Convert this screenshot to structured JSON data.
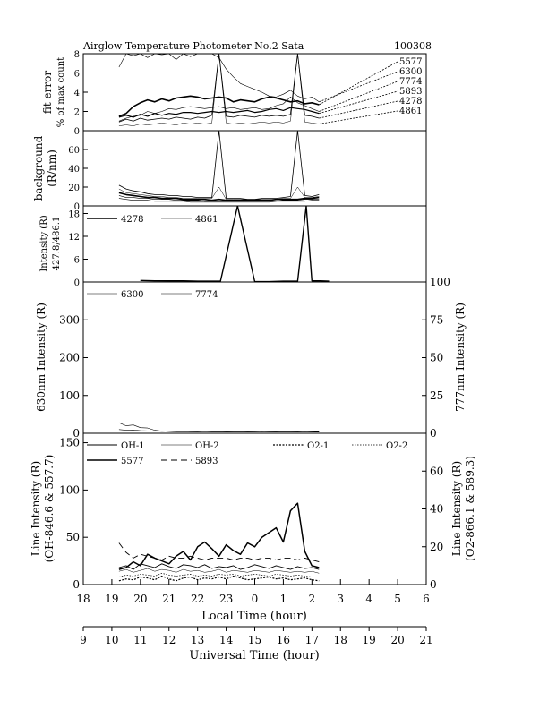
{
  "header": {
    "title": "Airglow Temperature Photometer No.2  Sata",
    "date": "100308"
  },
  "chart_data": [
    {
      "type": "line",
      "panel": "fit-error",
      "ylabel": [
        "fit error",
        "% of max count"
      ],
      "ylim": [
        0,
        8
      ],
      "yticks": [
        0,
        2,
        4,
        6,
        8
      ],
      "x": [
        19.25,
        19.5,
        19.75,
        20.0,
        20.25,
        20.5,
        20.75,
        21.0,
        21.25,
        21.5,
        21.75,
        22.0,
        22.25,
        22.5,
        22.75,
        23.0,
        23.25,
        23.5,
        23.75,
        24.0,
        24.25,
        24.5,
        24.75,
        25.0,
        25.25,
        25.5,
        25.75,
        26.0,
        26.25
      ],
      "series": [
        {
          "name": "5577",
          "values": [
            1.5,
            1.8,
            2.5,
            2.9,
            3.2,
            3.0,
            3.3,
            3.1,
            3.4,
            3.5,
            3.6,
            3.5,
            3.3,
            3.4,
            3.5,
            3.4,
            3.0,
            3.2,
            3.1,
            3.0,
            3.3,
            3.5,
            3.4,
            3.2,
            3.0,
            3.1,
            2.8,
            2.9,
            2.7
          ]
        },
        {
          "name": "6300",
          "values": [
            6.6,
            8.0,
            7.8,
            8.0,
            7.6,
            8.0,
            7.9,
            8.0,
            7.4,
            8.0,
            7.7,
            8.0,
            8.0,
            8.0,
            7.6,
            6.4,
            5.6,
            4.9,
            4.6,
            4.3,
            4.0,
            3.6,
            3.5,
            3.8,
            4.2,
            3.6,
            3.3,
            3.5,
            3.0
          ]
        },
        {
          "name": "7774",
          "values": [
            1.0,
            1.3,
            1.5,
            1.6,
            2.0,
            1.8,
            2.0,
            2.3,
            2.2,
            2.4,
            2.5,
            2.4,
            2.3,
            2.4,
            2.5,
            2.3,
            2.4,
            2.2,
            2.3,
            2.4,
            2.2,
            2.3,
            2.6,
            2.8,
            3.5,
            2.9,
            2.6,
            2.3,
            2.0
          ]
        },
        {
          "name": "5893",
          "values": [
            1.4,
            1.6,
            1.4,
            1.7,
            1.5,
            1.8,
            1.6,
            1.8,
            1.7,
            1.9,
            1.9,
            1.8,
            1.9,
            2.0,
            1.9,
            2.0,
            1.9,
            2.0,
            2.1,
            1.9,
            2.0,
            2.2,
            2.3,
            2.1,
            2.4,
            2.3,
            2.2,
            2.0,
            1.8
          ]
        },
        {
          "name": "4278",
          "values": [
            0.9,
            1.2,
            1.0,
            1.3,
            1.1,
            1.2,
            1.3,
            1.2,
            1.4,
            1.3,
            1.2,
            1.4,
            1.3,
            1.6,
            8.0,
            1.5,
            1.4,
            1.6,
            1.5,
            1.4,
            1.6,
            1.5,
            1.6,
            1.5,
            1.7,
            8.0,
            1.6,
            1.5,
            1.3
          ]
        },
        {
          "name": "4861",
          "values": [
            0.5,
            0.6,
            0.5,
            0.7,
            0.6,
            0.7,
            0.8,
            0.7,
            0.6,
            0.8,
            0.7,
            0.8,
            0.7,
            0.8,
            8.0,
            0.8,
            0.7,
            0.8,
            0.7,
            0.8,
            0.9,
            0.8,
            0.9,
            0.8,
            1.0,
            8.0,
            0.9,
            0.8,
            0.7
          ]
        }
      ]
    },
    {
      "type": "line",
      "panel": "background",
      "ylabel": [
        "background",
        "(R/nm)"
      ],
      "ylim": [
        0,
        80
      ],
      "yticks": [
        0,
        20,
        40,
        60
      ],
      "x": [
        19.25,
        19.5,
        19.75,
        20.0,
        20.25,
        20.5,
        20.75,
        21.0,
        21.25,
        21.5,
        21.75,
        22.0,
        22.25,
        22.5,
        22.75,
        23.0,
        23.25,
        23.5,
        23.75,
        24.0,
        24.25,
        24.5,
        24.75,
        25.0,
        25.25,
        25.5,
        25.75,
        26.0,
        26.25
      ],
      "series": [
        {
          "name": "4278",
          "values": [
            22,
            18,
            16,
            15,
            13,
            12,
            12,
            11,
            11,
            10,
            10,
            9,
            9,
            9,
            80,
            8,
            8,
            8,
            7,
            7,
            8,
            8,
            8,
            9,
            10,
            80,
            11,
            10,
            12
          ]
        },
        {
          "name": "4861",
          "values": [
            18,
            14,
            13,
            12,
            11,
            10,
            10,
            9,
            9,
            8,
            8,
            8,
            8,
            8,
            20,
            7,
            7,
            7,
            7,
            7,
            7,
            7,
            7,
            8,
            8,
            20,
            9,
            9,
            10
          ]
        },
        {
          "name": "5577",
          "values": [
            14,
            12,
            11,
            10,
            9,
            9,
            8,
            8,
            8,
            7,
            7,
            7,
            7,
            6,
            7,
            6,
            6,
            6,
            6,
            6,
            6,
            6,
            7,
            7,
            7,
            7,
            8,
            8,
            9
          ]
        },
        {
          "name": "6300",
          "values": [
            11,
            9,
            9,
            8,
            8,
            7,
            7,
            7,
            6,
            6,
            6,
            6,
            5,
            5,
            5,
            5,
            5,
            5,
            5,
            5,
            5,
            5,
            5,
            6,
            6,
            6,
            7,
            7,
            7
          ]
        },
        {
          "name": "7774",
          "values": [
            8,
            7,
            6,
            6,
            6,
            5,
            5,
            5,
            5,
            5,
            4,
            4,
            4,
            4,
            4,
            4,
            4,
            4,
            4,
            4,
            4,
            4,
            5,
            5,
            5,
            5,
            5,
            6,
            6
          ]
        }
      ]
    },
    {
      "type": "line",
      "panel": "intensity-427-486",
      "ylabel": [
        "Intensity (R)",
        "427.8/486.1"
      ],
      "ylim": [
        0,
        20
      ],
      "yticks": [
        0,
        6,
        12,
        18
      ],
      "legend": [
        "4278",
        "4861"
      ],
      "x": [
        20.0,
        20.5,
        21.0,
        21.5,
        22.0,
        22.5,
        22.8,
        23.4,
        24.0,
        24.5,
        25.0,
        25.5,
        25.8,
        26.0,
        26.3,
        26.6
      ],
      "series": [
        {
          "name": "4278",
          "values": [
            0.4,
            0.3,
            0.3,
            0.3,
            0.2,
            0.2,
            0.2,
            20,
            0.1,
            0.1,
            0.2,
            0.2,
            20,
            0.3,
            0.3,
            0.2
          ]
        },
        {
          "name": "4861",
          "values": [
            0.3,
            0.3,
            0.2,
            0.2,
            0.2,
            0.1,
            0.1,
            20,
            0.1,
            0.1,
            0.1,
            0.2,
            20,
            0.2,
            0.2,
            0.1
          ]
        }
      ]
    },
    {
      "type": "line",
      "panel": "intensity-630-777",
      "ylabel": "630nm Intensity  (R)",
      "ylabel_right": "777nm Intensity  (R)",
      "ylim": [
        0,
        400
      ],
      "ylim_right": [
        0,
        100
      ],
      "yticks": [
        0,
        100,
        200,
        300
      ],
      "yticks_right": [
        0,
        25,
        50,
        75,
        100
      ],
      "legend": [
        "6300",
        "7774"
      ],
      "x": [
        19.25,
        19.5,
        19.75,
        20.0,
        20.25,
        20.5,
        20.75,
        21.0,
        21.25,
        21.5,
        21.75,
        22.0,
        22.25,
        22.5,
        22.75,
        23.0,
        23.25,
        23.5,
        23.75,
        24.0,
        24.25,
        24.5,
        24.75,
        25.0,
        25.25,
        25.5,
        25.75,
        26.0,
        26.25
      ],
      "series": [
        {
          "name": "6300",
          "values": [
            28,
            20,
            22,
            15,
            14,
            8,
            6,
            5,
            4,
            4,
            3,
            3,
            3,
            3,
            3,
            3,
            3,
            3,
            3,
            3,
            4,
            3,
            3,
            3,
            3,
            3,
            4,
            3,
            3
          ]
        },
        {
          "name": "7774",
          "axis": "right",
          "values": [
            2.5,
            2.0,
            2.2,
            1.8,
            1.6,
            1.5,
            1.3,
            1.4,
            1.2,
            1.5,
            1.3,
            1.2,
            1.4,
            1.2,
            1.3,
            1.1,
            1.2,
            1.3,
            1.1,
            1.2,
            1.3,
            1.2,
            1.1,
            1.3,
            1.2,
            1.1,
            1.2,
            1.1,
            1.0
          ]
        }
      ]
    },
    {
      "type": "line",
      "panel": "line-intensity",
      "ylabel": [
        "Line Intensity (R)",
        "(OH-846.6 & 557.7)"
      ],
      "ylabel_right": [
        "Line Intensity (R)",
        "(O2-866.1 & 589.3)"
      ],
      "ylim": [
        0,
        160
      ],
      "ylim_right": [
        0,
        80
      ],
      "yticks": [
        0,
        50,
        100,
        150
      ],
      "yticks_right": [
        0,
        20,
        40,
        60
      ],
      "legend": [
        "OH-1",
        "OH-2",
        "O2-1",
        "O2-2",
        "5577",
        "5893"
      ],
      "x": [
        19.25,
        19.5,
        19.75,
        20.0,
        20.25,
        20.5,
        20.75,
        21.0,
        21.25,
        21.5,
        21.75,
        22.0,
        22.25,
        22.5,
        22.75,
        23.0,
        23.25,
        23.5,
        23.75,
        24.0,
        24.25,
        24.5,
        24.75,
        25.0,
        25.25,
        25.5,
        25.75,
        26.0,
        26.25
      ],
      "series": [
        {
          "name": "OH-1",
          "values": [
            18,
            20,
            16,
            22,
            20,
            18,
            22,
            19,
            17,
            21,
            20,
            18,
            21,
            17,
            19,
            18,
            20,
            16,
            18,
            21,
            19,
            17,
            20,
            18,
            16,
            19,
            17,
            18,
            16
          ]
        },
        {
          "name": "OH-2",
          "values": [
            14,
            16,
            13,
            15,
            17,
            14,
            16,
            15,
            13,
            16,
            14,
            15,
            13,
            14,
            16,
            13,
            15,
            14,
            13,
            15,
            14,
            13,
            15,
            14,
            13,
            14,
            13,
            14,
            12
          ]
        },
        {
          "name": "O2-1",
          "axis": "right",
          "values": [
            2.0,
            3.0,
            2.5,
            4.0,
            3.5,
            2.5,
            4.5,
            3.0,
            2.0,
            3.5,
            4.0,
            2.5,
            3.5,
            3.0,
            4.0,
            3.0,
            4.5,
            3.5,
            2.5,
            3.0,
            3.5,
            4.0,
            3.0,
            3.5,
            2.5,
            3.0,
            3.5,
            2.5,
            2.0
          ]
        },
        {
          "name": "O2-2",
          "axis": "right",
          "values": [
            4.0,
            5.0,
            4.5,
            5.5,
            5.0,
            4.5,
            6.0,
            5.0,
            4.5,
            5.0,
            5.5,
            4.5,
            5.0,
            4.5,
            5.5,
            5.0,
            5.5,
            4.5,
            5.0,
            5.5,
            5.0,
            4.5,
            5.5,
            5.0,
            4.5,
            5.0,
            4.5,
            4.0,
            4.0
          ]
        },
        {
          "name": "5577",
          "values": [
            16,
            18,
            24,
            20,
            32,
            28,
            25,
            22,
            30,
            35,
            26,
            40,
            45,
            38,
            30,
            42,
            36,
            32,
            44,
            40,
            50,
            55,
            60,
            45,
            78,
            86,
            35,
            20,
            18
          ]
        },
        {
          "name": "5893",
          "axis": "right",
          "values": [
            22,
            17,
            14,
            16,
            15,
            14,
            13,
            15,
            14,
            14,
            15,
            14,
            13,
            14,
            14,
            14,
            13,
            14,
            14,
            13,
            14,
            14,
            13,
            14,
            14,
            13,
            14,
            13,
            12
          ]
        }
      ]
    }
  ],
  "axes": {
    "local_time": {
      "label": "Local Time (hour)",
      "ticks": [
        "18",
        "19",
        "20",
        "21",
        "22",
        "23",
        "0",
        "1",
        "2",
        "3",
        "4",
        "5",
        "6"
      ]
    },
    "universal_time": {
      "label": "Universal Time (hour)",
      "ticks": [
        "9",
        "10",
        "11",
        "12",
        "13",
        "14",
        "15",
        "16",
        "17",
        "18",
        "19",
        "20",
        "21"
      ]
    }
  },
  "colors": {
    "line": "#000000",
    "thin": "#555555"
  }
}
